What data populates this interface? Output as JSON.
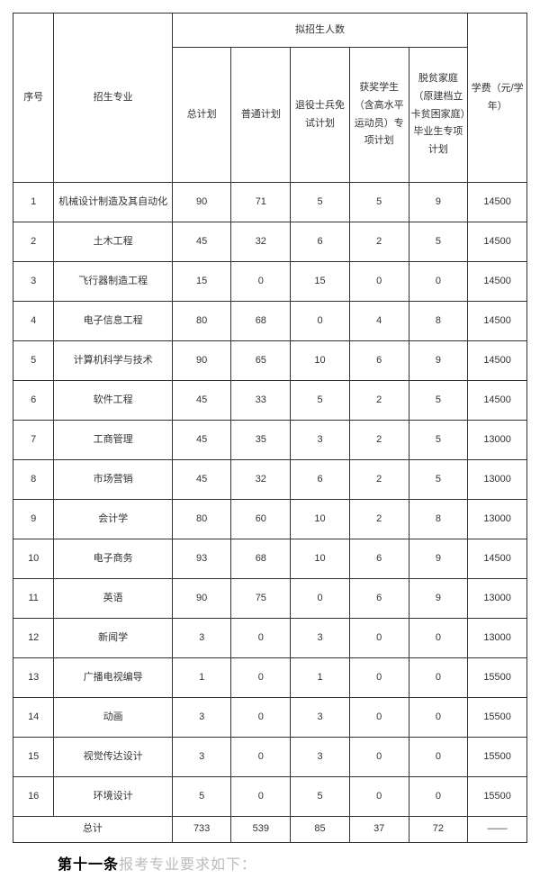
{
  "table": {
    "header": {
      "seq": "序号",
      "major": "招生专业",
      "group": "拟招生人数",
      "total": "总计划",
      "normal": "普通计划",
      "veteran": "退役士兵免试计划",
      "award": "获奖学生（含高水平运动员）专项计划",
      "poverty": "脱贫家庭（原建档立卡贫困家庭）毕业生专项计划",
      "fee": "学费（元/学年）"
    },
    "rows": [
      {
        "seq": "1",
        "major": "机械设计制造及其自动化",
        "total": "90",
        "normal": "71",
        "veteran": "5",
        "award": "5",
        "poverty": "9",
        "fee": "14500"
      },
      {
        "seq": "2",
        "major": "土木工程",
        "total": "45",
        "normal": "32",
        "veteran": "6",
        "award": "2",
        "poverty": "5",
        "fee": "14500"
      },
      {
        "seq": "3",
        "major": "飞行器制造工程",
        "total": "15",
        "normal": "0",
        "veteran": "15",
        "award": "0",
        "poverty": "0",
        "fee": "14500"
      },
      {
        "seq": "4",
        "major": "电子信息工程",
        "total": "80",
        "normal": "68",
        "veteran": "0",
        "award": "4",
        "poverty": "8",
        "fee": "14500"
      },
      {
        "seq": "5",
        "major": "计算机科学与技术",
        "total": "90",
        "normal": "65",
        "veteran": "10",
        "award": "6",
        "poverty": "9",
        "fee": "14500"
      },
      {
        "seq": "6",
        "major": "软件工程",
        "total": "45",
        "normal": "33",
        "veteran": "5",
        "award": "2",
        "poverty": "5",
        "fee": "14500"
      },
      {
        "seq": "7",
        "major": "工商管理",
        "total": "45",
        "normal": "35",
        "veteran": "3",
        "award": "2",
        "poverty": "5",
        "fee": "13000"
      },
      {
        "seq": "8",
        "major": "市场营销",
        "total": "45",
        "normal": "32",
        "veteran": "6",
        "award": "2",
        "poverty": "5",
        "fee": "13000"
      },
      {
        "seq": "9",
        "major": "会计学",
        "total": "80",
        "normal": "60",
        "veteran": "10",
        "award": "2",
        "poverty": "8",
        "fee": "13000"
      },
      {
        "seq": "10",
        "major": "电子商务",
        "total": "93",
        "normal": "68",
        "veteran": "10",
        "award": "6",
        "poverty": "9",
        "fee": "14500"
      },
      {
        "seq": "11",
        "major": "英语",
        "total": "90",
        "normal": "75",
        "veteran": "0",
        "award": "6",
        "poverty": "9",
        "fee": "13000"
      },
      {
        "seq": "12",
        "major": "新闻学",
        "total": "3",
        "normal": "0",
        "veteran": "3",
        "award": "0",
        "poverty": "0",
        "fee": "13000"
      },
      {
        "seq": "13",
        "major": "广播电视编导",
        "total": "1",
        "normal": "0",
        "veteran": "1",
        "award": "0",
        "poverty": "0",
        "fee": "15500"
      },
      {
        "seq": "14",
        "major": "动画",
        "total": "3",
        "normal": "0",
        "veteran": "3",
        "award": "0",
        "poverty": "0",
        "fee": "15500"
      },
      {
        "seq": "15",
        "major": "视觉传达设计",
        "total": "3",
        "normal": "0",
        "veteran": "3",
        "award": "0",
        "poverty": "0",
        "fee": "15500"
      },
      {
        "seq": "16",
        "major": "环境设计",
        "total": "5",
        "normal": "0",
        "veteran": "5",
        "award": "0",
        "poverty": "0",
        "fee": "15500"
      }
    ],
    "footer": {
      "label": "总计",
      "total": "733",
      "normal": "539",
      "veteran": "85",
      "award": "37",
      "poverty": "72",
      "fee": "——"
    }
  },
  "bottom": {
    "bold": "第十一条",
    "faded": "报考专业要求如下："
  }
}
